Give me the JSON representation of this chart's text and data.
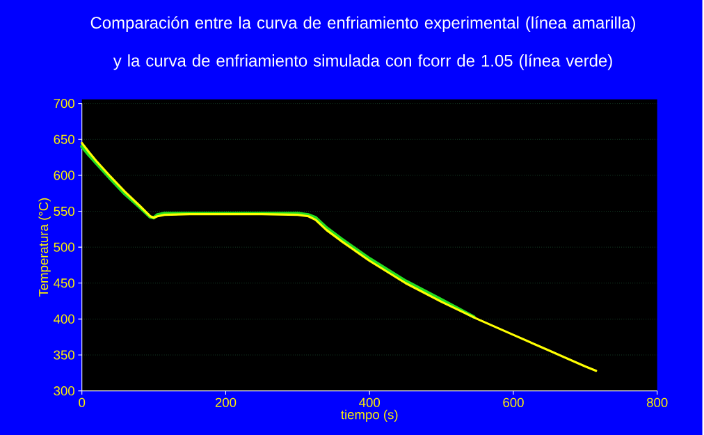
{
  "chart_data": {
    "type": "line",
    "title": "Comparación entre la curva de enfriamiento experimental (línea amarilla) y la curva de enfriamiento simulada con fcorr de 1.05 (línea verde)",
    "xlabel": "tiempo (s)",
    "ylabel": "Temperatura (°C)",
    "xlim": [
      0,
      800
    ],
    "ylim": [
      300,
      700
    ],
    "xticks": [
      0,
      200,
      400,
      600,
      800
    ],
    "yticks": [
      300,
      350,
      400,
      450,
      500,
      550,
      600,
      650,
      700
    ],
    "grid": "y",
    "series": [
      {
        "color": "#22dd22",
        "x": [
          0,
          10,
          20,
          40,
          60,
          80,
          95,
          100,
          105,
          115,
          150,
          200,
          250,
          300,
          315,
          325,
          340,
          360,
          400,
          450,
          500,
          545
        ],
        "values": [
          640,
          628,
          617,
          595,
          574,
          556,
          542,
          541,
          545,
          547,
          547,
          547,
          547,
          547,
          545,
          541,
          527,
          512,
          484,
          453,
          427,
          403
        ]
      },
      {
        "color": "#ffff00",
        "x": [
          0,
          10,
          20,
          40,
          60,
          80,
          95,
          100,
          105,
          115,
          150,
          200,
          250,
          300,
          315,
          325,
          340,
          360,
          400,
          450,
          500,
          550,
          600,
          650,
          700,
          715
        ],
        "values": [
          645,
          632,
          620,
          598,
          577,
          558,
          543,
          541,
          543,
          545,
          546,
          546,
          546,
          545,
          543,
          538,
          524,
          509,
          481,
          450,
          424,
          400,
          378,
          356,
          334,
          328
        ]
      }
    ]
  }
}
